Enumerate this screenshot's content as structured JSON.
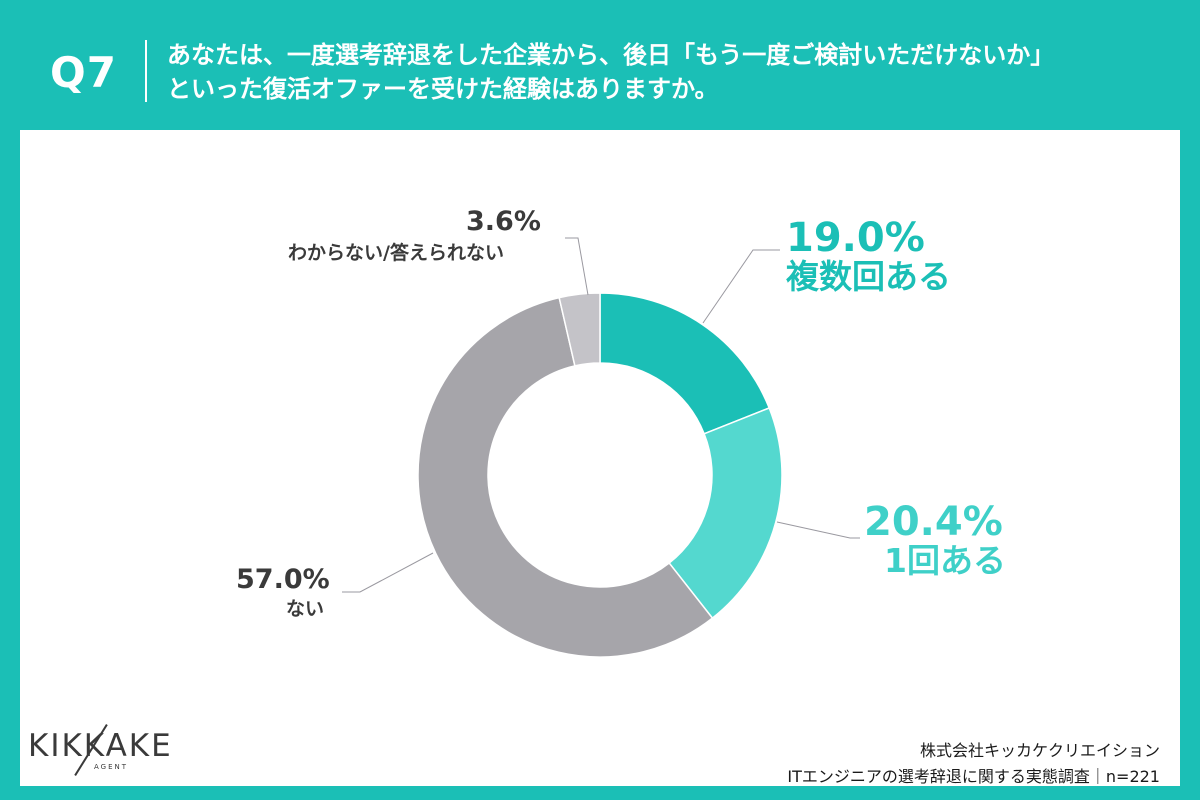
{
  "header": {
    "q_label": "Q7",
    "question_line1": "あなたは、一度選考辞退をした企業から、後日「もう一度ご検討いただけないか」",
    "question_line2": "といった復活オファーを受けた経験はありますか。"
  },
  "chart_data": {
    "type": "pie",
    "donut": true,
    "categories": [
      "複数回ある",
      "1回ある",
      "ない",
      "わからない/答えられない"
    ],
    "values": [
      19.0,
      20.4,
      57.0,
      3.6
    ],
    "labels": [
      "19.0%",
      "20.4%",
      "57.0%",
      "3.6%"
    ],
    "colors": [
      "#1bbfb6",
      "#54d8cf",
      "#a6a5aa",
      "#c4c3c8"
    ],
    "legend": "none"
  },
  "footer": {
    "company": "株式会社キッカケクリエイション",
    "survey": "ITエンジニアの選考辞退に関する実態調査｜n=221"
  },
  "logo": {
    "name": "KIKKAKE",
    "sub": "AGENT"
  }
}
